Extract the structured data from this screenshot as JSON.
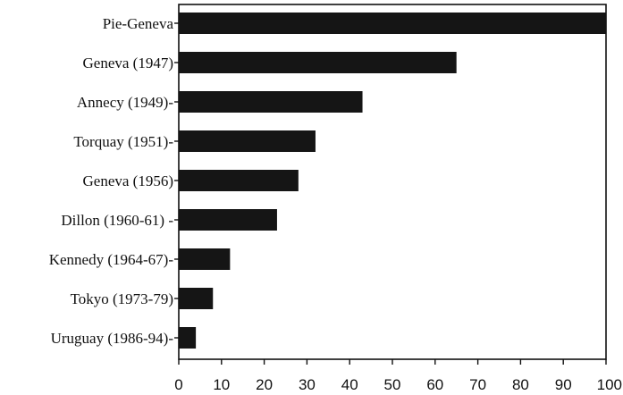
{
  "chart_data": {
    "type": "bar",
    "orientation": "horizontal",
    "categories": [
      "Pie-Geneva",
      "Geneva (1947)",
      "Annecy (1949)-",
      "Torquay (1951)-",
      "Geneva (1956)",
      "Dillon (1960-61) -",
      "Kennedy (1964-67)-",
      "Tokyo (1973-79)",
      "Uruguay (1986-94)-"
    ],
    "values": [
      100,
      65,
      43,
      32,
      28,
      23,
      12,
      8,
      4
    ],
    "xlim": [
      0,
      100
    ],
    "xticks": [
      "0",
      "10",
      "20",
      "30",
      "40",
      "50",
      "60",
      "70",
      "80",
      "90",
      "100"
    ],
    "title": "",
    "xlabel": "",
    "ylabel": "",
    "grid": false,
    "bar_color": "#151515"
  }
}
